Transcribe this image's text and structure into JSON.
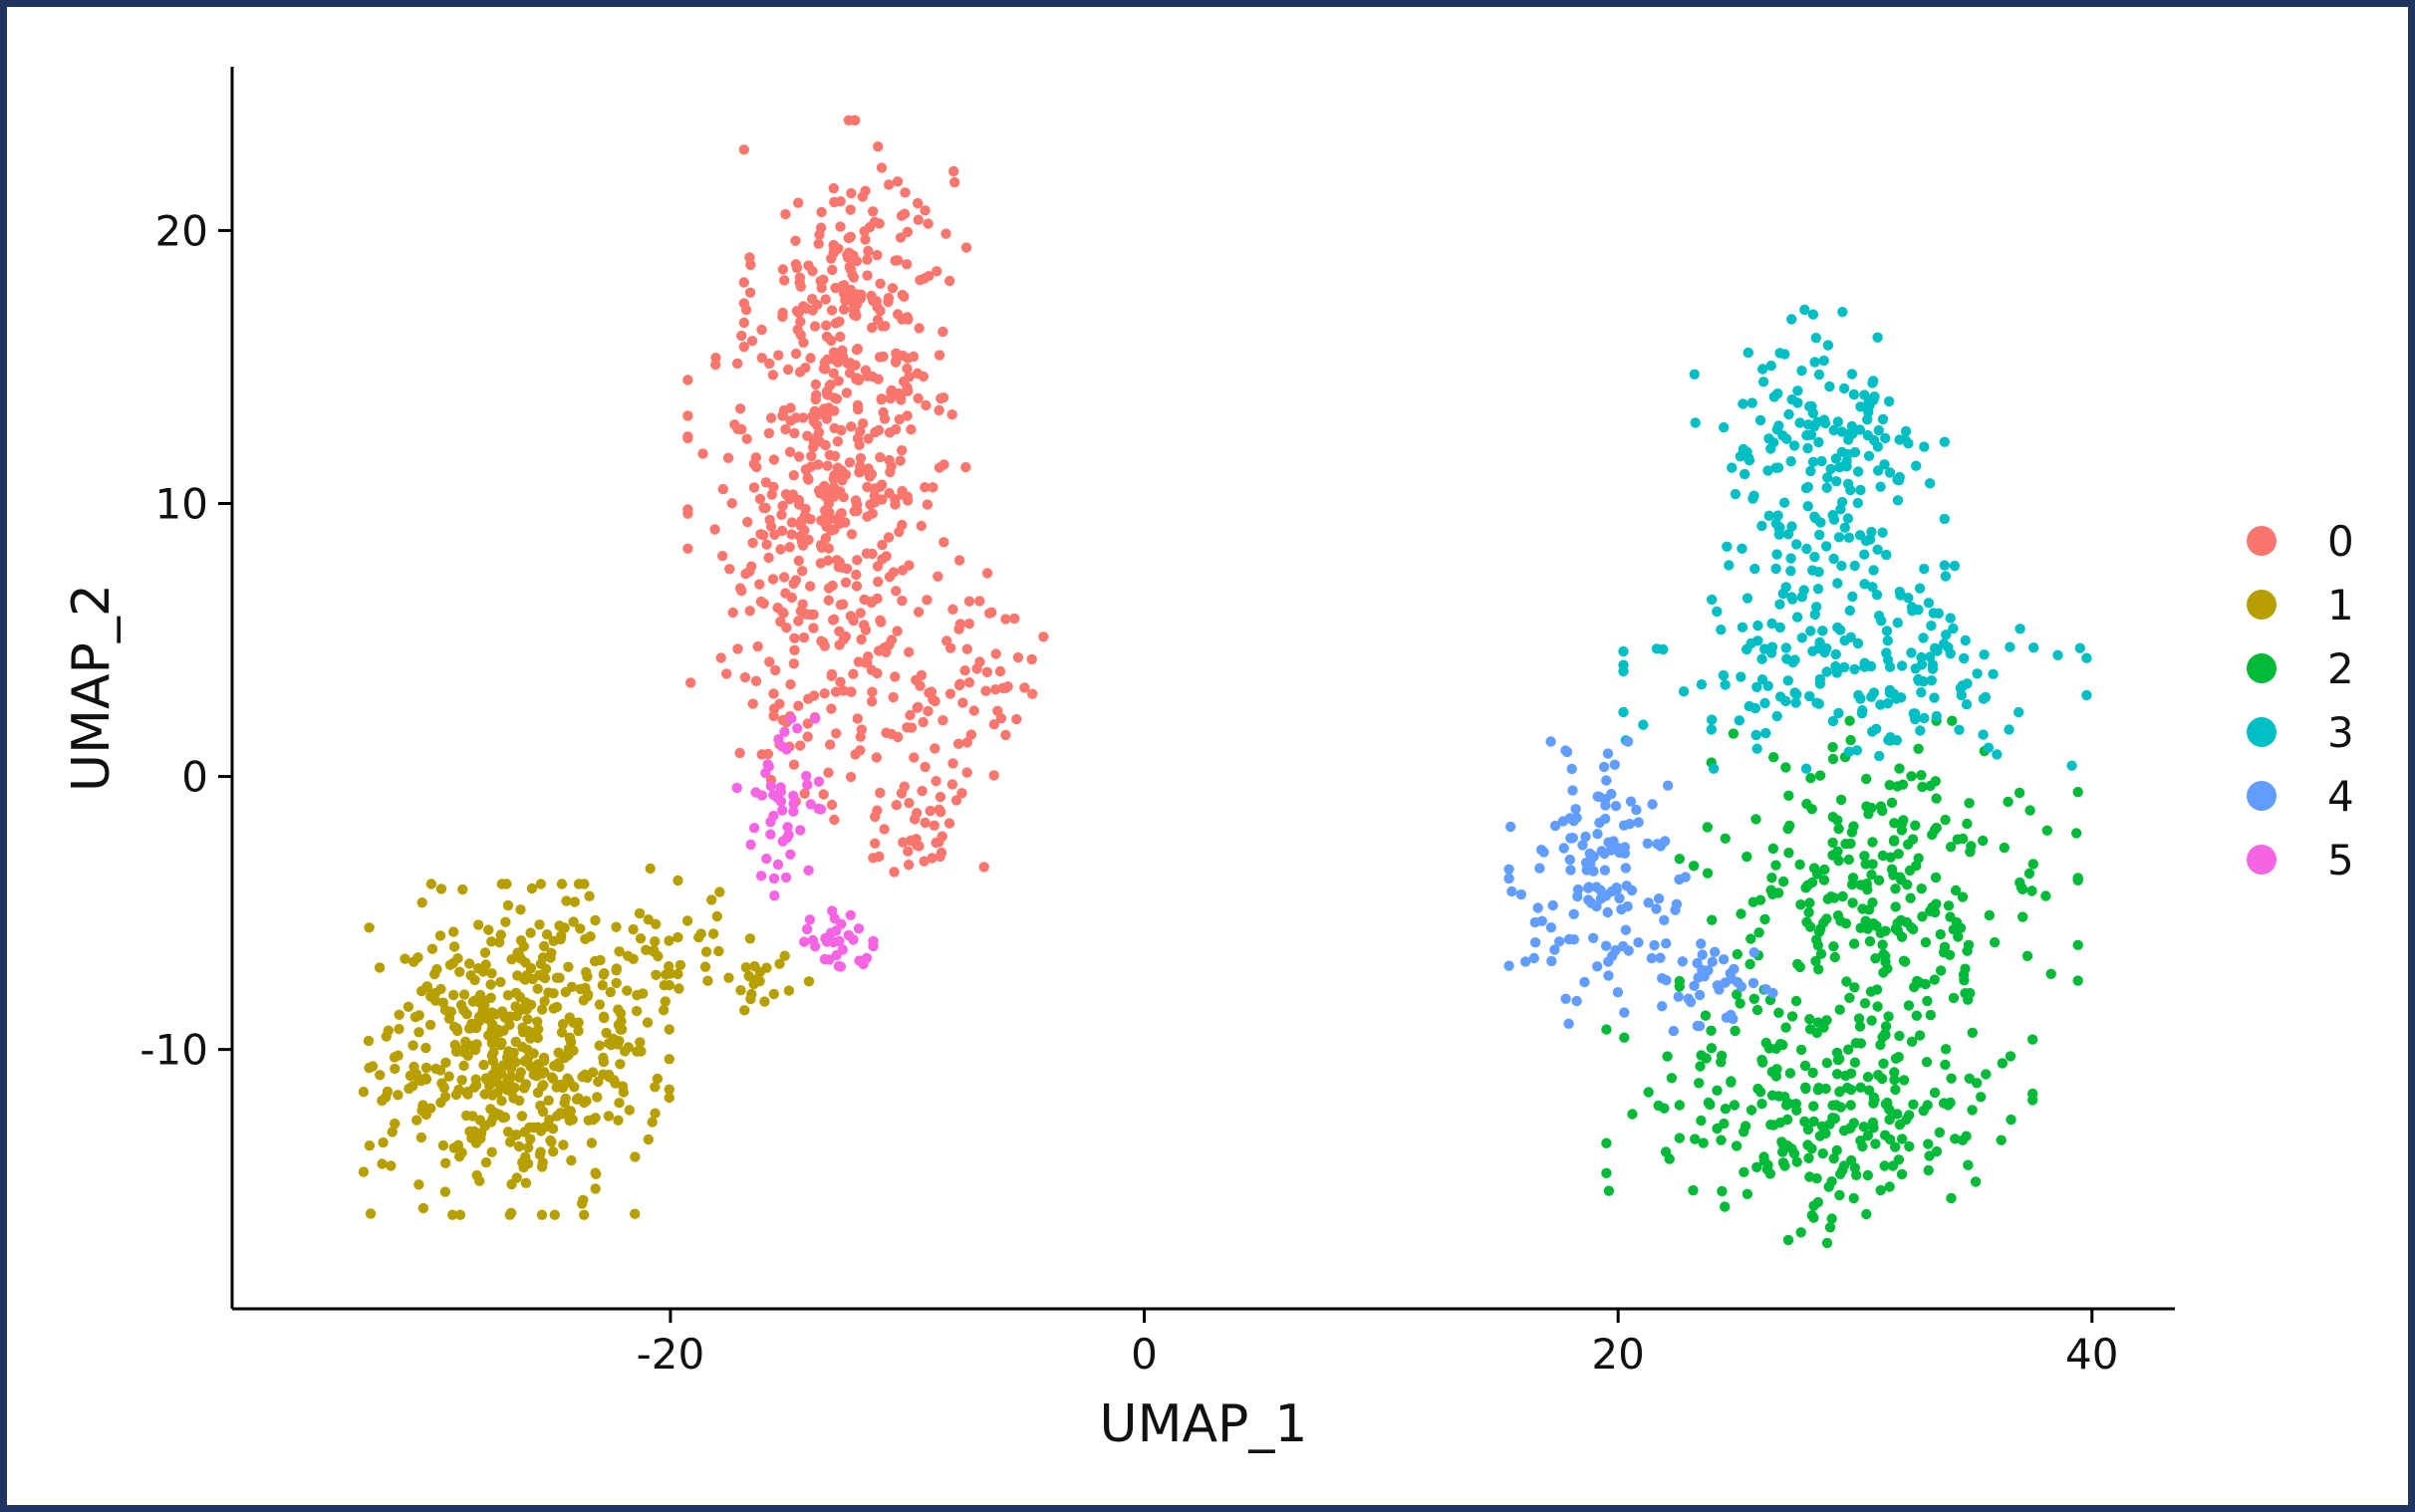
{
  "chart_data": {
    "type": "scatter",
    "xlabel": "UMAP_1",
    "ylabel": "UMAP_2",
    "xlim": [
      -38.5,
      43.5
    ],
    "ylim": [
      -19.5,
      26
    ],
    "x_ticks": [
      -20,
      0,
      20,
      40
    ],
    "x_tick_labels": [
      "-20",
      "0",
      "20",
      "40"
    ],
    "y_ticks": [
      -10,
      0,
      10,
      20
    ],
    "y_tick_labels": [
      "-10",
      "0",
      "10",
      "20"
    ],
    "grid": false,
    "legend_position": "right",
    "series": [
      {
        "name": "0",
        "color": "#F8766D",
        "point_count": 720
      },
      {
        "name": "1",
        "color": "#B79F00",
        "point_count": 560
      },
      {
        "name": "2",
        "color": "#00BA38",
        "point_count": 520
      },
      {
        "name": "3",
        "color": "#00BFC4",
        "point_count": 380
      },
      {
        "name": "4",
        "color": "#619CFF",
        "point_count": 170
      },
      {
        "name": "5",
        "color": "#F564E3",
        "point_count": 75
      }
    ],
    "clusters": [
      {
        "series": "0",
        "blobs": [
          {
            "cx": -12.2,
            "cy": 17,
            "sx": 2.4,
            "sy": 3.6,
            "w": 0.34
          },
          {
            "cx": -13.4,
            "cy": 10.5,
            "sx": 3.0,
            "sy": 3.0,
            "w": 0.34
          },
          {
            "cx": -12.5,
            "cy": 3.5,
            "sx": 3.4,
            "sy": 2.6,
            "w": 0.22
          },
          {
            "cx": -9.5,
            "cy": -2,
            "sx": 1.4,
            "sy": 1.3,
            "w": 0.05
          },
          {
            "cx": -6.5,
            "cy": 4,
            "sx": 1.2,
            "sy": 1.8,
            "w": 0.05
          }
        ]
      },
      {
        "series": "1",
        "blobs": [
          {
            "cx": -26.5,
            "cy": -10,
            "sx": 3.3,
            "sy": 3.1,
            "w": 0.88
          },
          {
            "cx": -20.5,
            "cy": -6.5,
            "sx": 2.0,
            "sy": 1.6,
            "w": 0.08
          },
          {
            "cx": -16.5,
            "cy": -7.5,
            "sx": 1.2,
            "sy": 0.8,
            "w": 0.04
          }
        ]
      },
      {
        "series": "2",
        "blobs": [
          {
            "cx": 31,
            "cy": -5,
            "sx": 4.3,
            "sy": 3.6,
            "w": 0.58
          },
          {
            "cx": 28.5,
            "cy": -12.5,
            "sx": 4.6,
            "sy": 2.4,
            "w": 0.42
          }
        ]
      },
      {
        "series": "3",
        "blobs": [
          {
            "cx": 28.5,
            "cy": 11,
            "sx": 2.7,
            "sy": 3.3,
            "w": 0.5
          },
          {
            "cx": 30,
            "cy": 4,
            "sx": 5.0,
            "sy": 1.9,
            "w": 0.5
          }
        ]
      },
      {
        "series": "4",
        "blobs": [
          {
            "cx": 19.5,
            "cy": -4,
            "sx": 2.1,
            "sy": 2.7,
            "w": 0.78
          },
          {
            "cx": 24.2,
            "cy": -7.5,
            "sx": 1.2,
            "sy": 1.0,
            "w": 0.22
          }
        ]
      },
      {
        "series": "5",
        "blobs": [
          {
            "cx": -15.5,
            "cy": -1.2,
            "sx": 1.0,
            "sy": 1.7,
            "w": 0.62
          },
          {
            "cx": -13.2,
            "cy": -6.0,
            "sx": 0.9,
            "sy": 0.6,
            "w": 0.38
          }
        ]
      }
    ]
  }
}
